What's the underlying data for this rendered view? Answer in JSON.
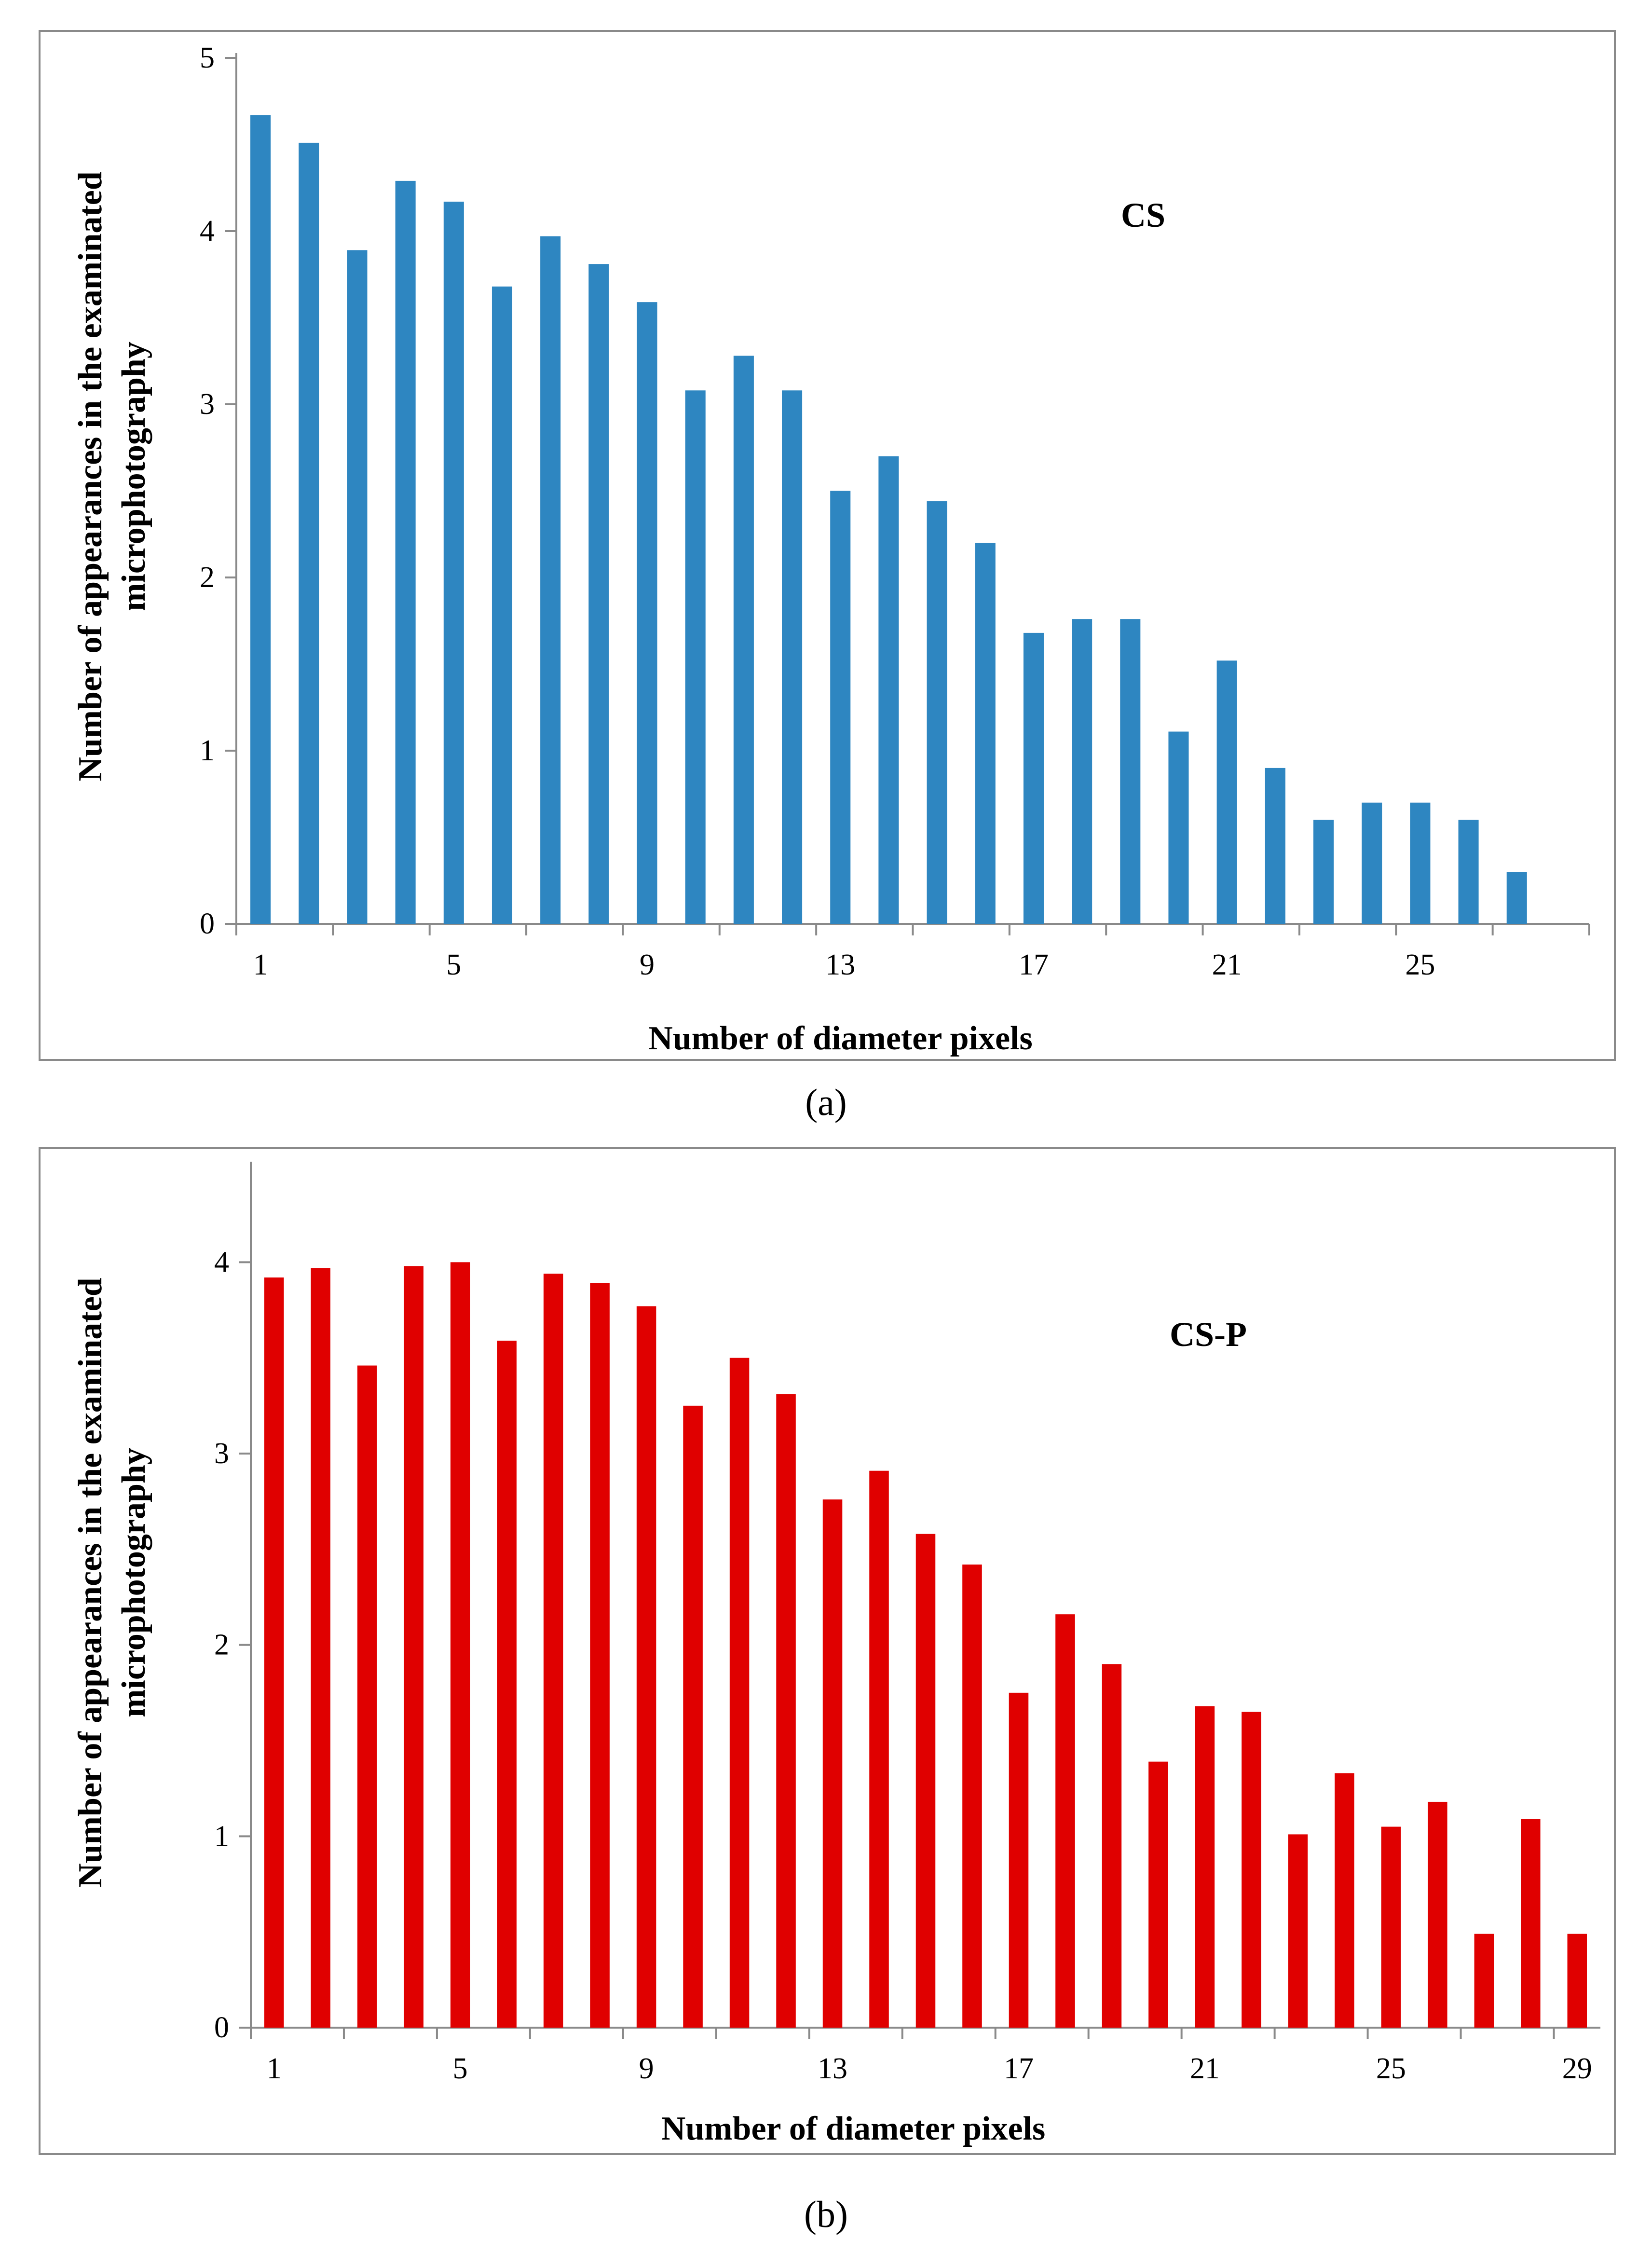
{
  "chart_data": [
    {
      "type": "bar",
      "panel": "a",
      "title": "",
      "series_label": "CS",
      "xlabel": "Number of diameter pixels",
      "ylabel_line1": "Number of appearances in the examinated",
      "ylabel_line2": "microphotography",
      "categories": [
        1,
        2,
        3,
        4,
        5,
        6,
        7,
        8,
        9,
        10,
        11,
        12,
        13,
        14,
        15,
        16,
        17,
        18,
        19,
        20,
        21,
        22,
        23,
        24,
        25,
        26,
        27
      ],
      "values": [
        4.67,
        4.51,
        3.89,
        4.29,
        4.17,
        3.68,
        3.97,
        3.81,
        3.59,
        3.08,
        3.28,
        3.08,
        2.5,
        2.7,
        2.44,
        2.2,
        1.68,
        1.76,
        1.76,
        1.11,
        1.52,
        0.9,
        0.6,
        0.7,
        0.7,
        0.6,
        0.3
      ],
      "xticks": [
        1,
        5,
        9,
        13,
        17,
        21,
        25
      ],
      "yticks": [
        0,
        1,
        2,
        3,
        4,
        5
      ],
      "ylim": [
        0,
        5
      ],
      "color": "#2e86c1",
      "caption": "(a)"
    },
    {
      "type": "bar",
      "panel": "b",
      "title": "",
      "series_label": "CS-P",
      "xlabel": "Number of diameter pixels",
      "ylabel_line1": "Number of appearances in the examinated",
      "ylabel_line2": "microphotography",
      "categories": [
        1,
        2,
        3,
        4,
        5,
        6,
        7,
        8,
        9,
        10,
        11,
        12,
        13,
        14,
        15,
        16,
        17,
        18,
        19,
        20,
        21,
        22,
        23,
        24,
        25,
        26,
        27,
        28,
        29
      ],
      "values": [
        3.92,
        3.97,
        3.46,
        3.98,
        4.0,
        3.59,
        3.94,
        3.89,
        3.77,
        3.25,
        3.5,
        3.31,
        2.76,
        2.91,
        2.58,
        2.42,
        1.75,
        2.16,
        1.9,
        1.39,
        1.68,
        1.65,
        1.01,
        1.33,
        1.05,
        1.18,
        0.49,
        1.09,
        0.49
      ],
      "xticks": [
        1,
        5,
        9,
        13,
        17,
        21,
        25,
        29
      ],
      "yticks": [
        0,
        1,
        2,
        3,
        4
      ],
      "ylim": [
        0,
        4.5
      ],
      "color": "#e00000",
      "caption": "(b)"
    }
  ]
}
